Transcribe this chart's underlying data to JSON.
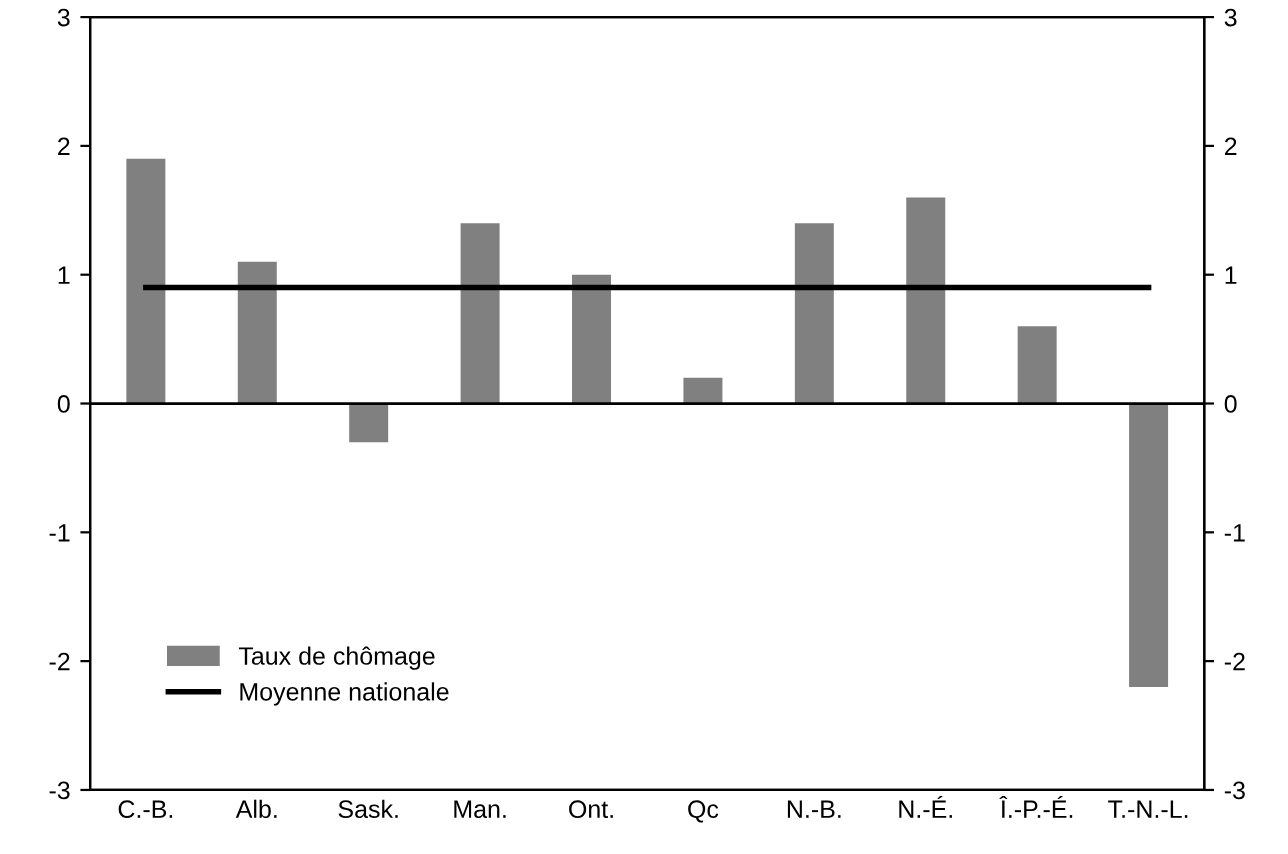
{
  "chart_data": {
    "type": "bar",
    "categories": [
      "C.-B.",
      "Alb.",
      "Sask.",
      "Man.",
      "Ont.",
      "Qc",
      "N.-B.",
      "N.-É.",
      "Î.-P.-É.",
      "T.-N.-L."
    ],
    "series": [
      {
        "name": "Taux de chômage",
        "color": "#808080",
        "values": [
          1.9,
          1.1,
          -0.3,
          1.4,
          1.0,
          0.2,
          1.4,
          1.6,
          0.6,
          -2.2
        ]
      },
      {
        "name": "Moyenne nationale",
        "type": "line",
        "color": "#000000",
        "values": [
          0.9,
          0.9,
          0.9,
          0.9,
          0.9,
          0.9,
          0.9,
          0.9,
          0.9,
          0.9
        ]
      }
    ],
    "ylim": [
      -3,
      3
    ],
    "yticks": [
      -3,
      -2,
      -1,
      0,
      1,
      2,
      3
    ],
    "y2lim": [
      -3,
      3
    ],
    "y2ticks": [
      -3,
      -2,
      -1,
      0,
      1,
      2,
      3
    ],
    "ref_lines": [
      {
        "axis": "y",
        "value": 0,
        "color": "#000000"
      }
    ],
    "legend": "bottom left",
    "grid": false,
    "marker": "none",
    "line_style": "solid"
  }
}
